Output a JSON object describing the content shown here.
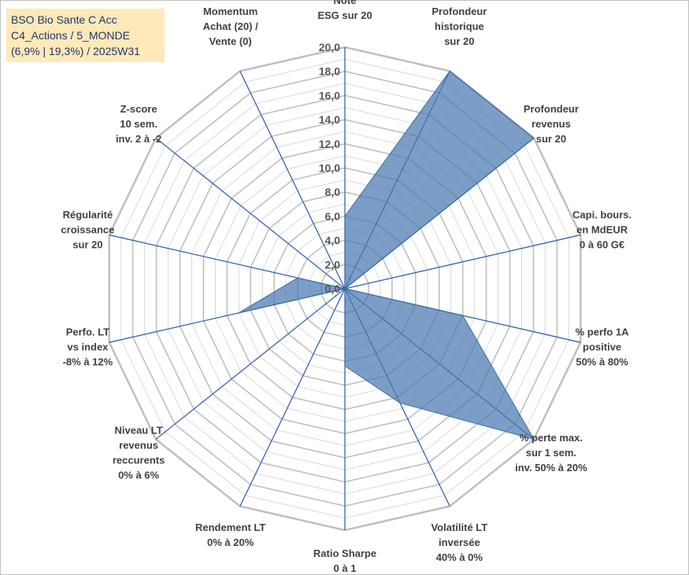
{
  "chart_title_box": {
    "line1": "BSO Bio Sante C Acc",
    "line2": "C4_Actions / 5_MONDE",
    "line3": "(6,9% | 19,3%) / 2025W31"
  },
  "chart_data": {
    "type": "radar",
    "range": [
      0,
      20
    ],
    "tick_step": 2,
    "tick_labels": [
      "0,0",
      "2,0",
      "4,0",
      "6,0",
      "8,0",
      "10,0",
      "12,0",
      "14,0",
      "16,0",
      "18,0",
      "20,0"
    ],
    "grid": true,
    "axes": [
      {
        "label": [
          "Note",
          "ESG sur 20"
        ],
        "value": 6.0
      },
      {
        "label": [
          "Profondeur",
          "historique",
          "sur 20"
        ],
        "value": 20.0
      },
      {
        "label": [
          "Profondeur",
          "revenus",
          "sur 20"
        ],
        "value": 20.0
      },
      {
        "label": [
          "Capi. bours.",
          "en MdEUR",
          "0 à 60 G€"
        ],
        "value": 0.0
      },
      {
        "label": [
          "% perfo 1A",
          "positive",
          "50% à 80%"
        ],
        "value": 10.0
      },
      {
        "label": [
          "% perte max.",
          "sur 1 sem.",
          "inv. 50% à 20%"
        ],
        "value": 20.0
      },
      {
        "label": [
          "Volatilité LT",
          "inversée",
          "40% à 0%"
        ],
        "value": 10.5
      },
      {
        "label": [
          "Ratio Sharpe",
          "0 à 1"
        ],
        "value": 6.4
      },
      {
        "label": [
          "Rendement LT",
          "0% à 20%"
        ],
        "value": 0.0
      },
      {
        "label": [
          "Niveau LT",
          "revenus",
          "reccurents",
          "0% à 6%"
        ],
        "value": 0.0
      },
      {
        "label": [
          "Perfo. LT",
          "vs index",
          "-8% à 12%"
        ],
        "value": 9.0
      },
      {
        "label": [
          "Régularité",
          "croissance",
          "sur 20"
        ],
        "value": 4.0
      },
      {
        "label": [
          "Z-score",
          "10 sem.",
          "inv. 2 à -2"
        ],
        "value": 0.0
      },
      {
        "label": [
          "Momentum",
          "Achat (20) /",
          "Vente (0)"
        ],
        "value": 0.0
      }
    ],
    "colors": {
      "fill": "#4a78b0",
      "stroke": "#3b6aa5",
      "spoke": "#3565b0",
      "grid_major": "#bfbfbf",
      "grid_minor": "#d9d9d9"
    }
  }
}
